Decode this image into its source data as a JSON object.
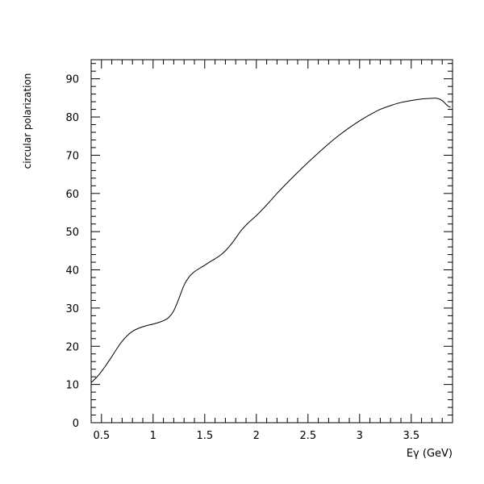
{
  "chart_data": {
    "type": "line",
    "title": "",
    "xlabel": "Eγ (GeV)",
    "ylabel": "circular polarization",
    "xlim": [
      0.4,
      3.9
    ],
    "ylim": [
      0,
      95
    ],
    "grid": false,
    "x_ticks": [
      0.5,
      1,
      1.5,
      2,
      2.5,
      3,
      3.5
    ],
    "x_tick_labels": [
      "0.5",
      "1",
      "1.5",
      "2",
      "2.5",
      "3",
      "3.5"
    ],
    "y_ticks": [
      0,
      10,
      20,
      30,
      40,
      50,
      60,
      70,
      80,
      90
    ],
    "y_tick_labels": [
      "0",
      "10",
      "20",
      "30",
      "40",
      "50",
      "60",
      "70",
      "80",
      "90"
    ],
    "series": [
      {
        "color": "#000000",
        "x": [
          0.4,
          0.45,
          0.5,
          0.55,
          0.6,
          0.65,
          0.7,
          0.75,
          0.8,
          0.85,
          0.9,
          0.95,
          1.0,
          1.05,
          1.1,
          1.15,
          1.2,
          1.25,
          1.3,
          1.35,
          1.4,
          1.45,
          1.5,
          1.55,
          1.6,
          1.65,
          1.7,
          1.75,
          1.8,
          1.85,
          1.9,
          1.95,
          2.0,
          2.1,
          2.2,
          2.3,
          2.4,
          2.5,
          2.6,
          2.7,
          2.8,
          2.9,
          3.0,
          3.1,
          3.2,
          3.3,
          3.4,
          3.5,
          3.6,
          3.7,
          3.75,
          3.8,
          3.85,
          3.88
        ],
        "y": [
          10.5,
          11.8,
          13.4,
          15.3,
          17.3,
          19.4,
          21.3,
          22.8,
          23.9,
          24.6,
          25.1,
          25.5,
          25.8,
          26.2,
          26.7,
          27.5,
          29.3,
          32.5,
          36.0,
          38.2,
          39.5,
          40.4,
          41.2,
          42.1,
          42.9,
          43.8,
          45.0,
          46.5,
          48.3,
          50.2,
          51.7,
          53.0,
          54.2,
          57.0,
          60.0,
          62.8,
          65.5,
          68.1,
          70.6,
          73.0,
          75.2,
          77.2,
          79.0,
          80.6,
          82.0,
          83.0,
          83.8,
          84.3,
          84.7,
          84.9,
          84.9,
          84.3,
          83.0,
          82.5
        ]
      }
    ]
  }
}
